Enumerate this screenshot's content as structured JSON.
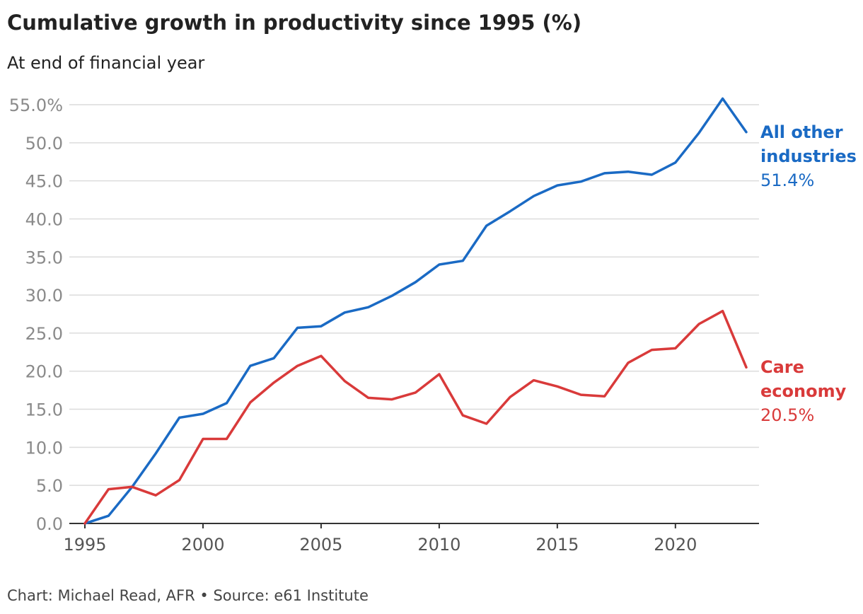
{
  "chart_data": {
    "type": "line",
    "title": "Cumulative growth in productivity since 1995 (%)",
    "subtitle": "At end of financial year",
    "source": "Chart: Michael Read, AFR • Source: e61 Institute",
    "xlabel": "",
    "ylabel": "",
    "xlim": [
      1995,
      2023
    ],
    "ylim": [
      0,
      55
    ],
    "x_ticks": [
      1995,
      2000,
      2005,
      2010,
      2015,
      2020
    ],
    "y_ticks": [
      "0.0",
      "5.0",
      "10.0",
      "15.0",
      "20.0",
      "25.0",
      "30.0",
      "35.0",
      "40.0",
      "45.0",
      "50.0",
      "55.0%"
    ],
    "x": [
      1995,
      1996,
      1997,
      1998,
      1999,
      2000,
      2001,
      2002,
      2003,
      2004,
      2005,
      2006,
      2007,
      2008,
      2009,
      2010,
      2011,
      2012,
      2013,
      2014,
      2015,
      2016,
      2017,
      2018,
      2019,
      2020,
      2021,
      2022,
      2023
    ],
    "series": [
      {
        "name_line1": "All other",
        "name_line2": "industries",
        "end_label": "51.4%",
        "color": "#1a6ac4",
        "values": [
          0.0,
          1.0,
          4.8,
          9.2,
          13.9,
          14.4,
          15.8,
          20.7,
          21.7,
          25.7,
          25.9,
          27.7,
          28.4,
          29.9,
          31.7,
          34.0,
          34.5,
          39.1,
          41.0,
          43.0,
          44.4,
          44.9,
          46.0,
          46.2,
          45.8,
          47.4,
          51.3,
          55.8,
          51.4
        ]
      },
      {
        "name_line1": "Care",
        "name_line2": "economy",
        "end_label": "20.5%",
        "color": "#d93a3a",
        "values": [
          0.0,
          4.5,
          4.8,
          3.7,
          5.7,
          11.1,
          11.1,
          15.9,
          18.5,
          20.7,
          22.0,
          18.7,
          16.5,
          16.3,
          17.2,
          19.6,
          14.2,
          13.1,
          16.6,
          18.8,
          18.0,
          16.9,
          16.7,
          21.1,
          22.8,
          23.0,
          26.2,
          27.9,
          20.5
        ]
      }
    ]
  }
}
